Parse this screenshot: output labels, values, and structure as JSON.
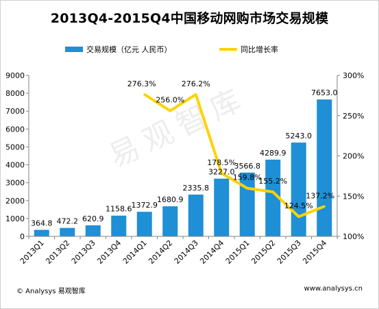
{
  "chart_data": {
    "type": "bar+line",
    "title": "2013Q4-2015Q4中国移动网购市场交易规模",
    "categories": [
      "2013Q1",
      "2013Q2",
      "2013Q3",
      "2013Q4",
      "2014Q1",
      "2014Q2",
      "2014Q3",
      "2014Q4",
      "2015Q1",
      "2015Q2",
      "2015Q3",
      "2015Q4"
    ],
    "series": [
      {
        "name": "交易规模（亿元 人民币）",
        "type": "bar",
        "axis": "left",
        "values": [
          364.8,
          472.2,
          620.9,
          1158.6,
          1372.9,
          1680.9,
          2335.8,
          3227.0,
          3566.8,
          4289.9,
          5243.0,
          7653.0
        ],
        "labels": [
          "364.8",
          "472.2",
          "620.9",
          "1158.6",
          "1372.9",
          "1680.9",
          "2335.8",
          "3227.0",
          "3566.8",
          "4289.9",
          "5243.0",
          "7653.0"
        ],
        "color": "#1f8fd6"
      },
      {
        "name": "同比增长率",
        "type": "line",
        "axis": "right",
        "values": [
          null,
          null,
          null,
          null,
          276.3,
          256.0,
          276.2,
          178.5,
          159.8,
          155.2,
          124.5,
          137.2
        ],
        "labels": [
          "",
          "",
          "",
          "",
          "276.3%",
          "256.0%",
          "276.2%",
          "178.5%",
          "159.8%",
          "155.2%",
          "124.5%",
          "137.2%"
        ],
        "color": "#ffd200"
      }
    ],
    "y_left": {
      "ticks": [
        "0",
        "1000",
        "2000",
        "3000",
        "4000",
        "5000",
        "6000",
        "7000",
        "8000",
        "9000"
      ],
      "ylim": [
        0,
        9000
      ]
    },
    "y_right": {
      "ticks": [
        "100%",
        "150%",
        "200%",
        "250%",
        "300%"
      ],
      "ylim": [
        100,
        300
      ]
    },
    "grid": false,
    "legend_position": "top"
  },
  "watermark": "易观智库",
  "footer": {
    "left": "© Analysys 易观智库",
    "right": "www.analysys.cn"
  }
}
